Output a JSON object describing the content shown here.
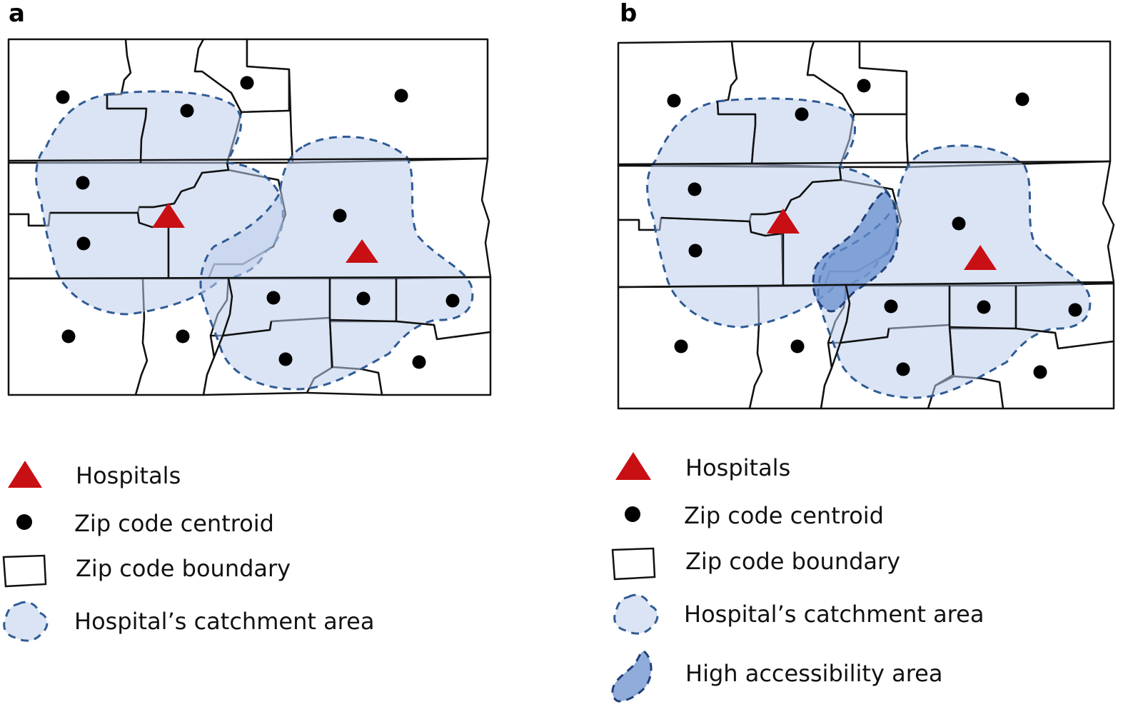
{
  "panels": [
    {
      "label": "a",
      "legend": {
        "hospitals": "Hospitals",
        "zip_centroid": "Zip code centroid",
        "zip_boundary": "Zip code boundary",
        "catchment": "Hospital’s catchment area"
      }
    },
    {
      "label": "b",
      "legend": {
        "hospitals": "Hospitals",
        "zip_centroid": "Zip code centroid",
        "zip_boundary": "Zip code boundary",
        "catchment": "Hospital’s catchment area",
        "high_access": "High accessibility area"
      }
    }
  ],
  "colors": {
    "hospital": "#c80f14",
    "centroid": "#000000",
    "catchment_fill": "#c8d4ee",
    "catchment_stroke": "#2f5b95",
    "high_access_fill": "#6a8dcc"
  }
}
